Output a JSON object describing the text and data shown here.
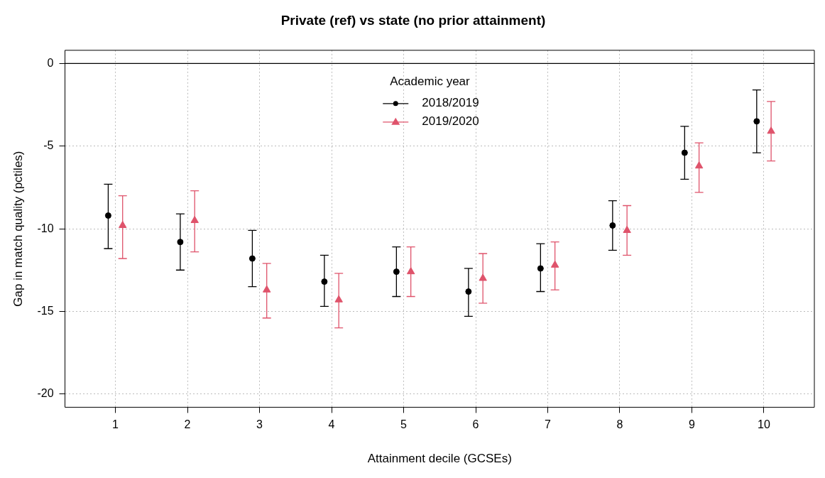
{
  "chart_data": {
    "type": "scatter",
    "title": "Private (ref) vs state (no prior attainment)",
    "xlabel": "Attainment decile (GCSEs)",
    "ylabel": "Gap in match quality (pctiles)",
    "legend_title": "Academic year",
    "legend": "top",
    "grid": true,
    "xlim": [
      0.3,
      10.7
    ],
    "xticks": [
      1,
      2,
      3,
      4,
      5,
      6,
      7,
      8,
      9,
      10
    ],
    "ylim": [
      -20.8,
      0.8
    ],
    "yticks": [
      -20,
      -15,
      -10,
      -5,
      0
    ],
    "ref_lines": [
      {
        "axis": "y",
        "value": 0,
        "color": "#000000",
        "line_style": "solid"
      }
    ],
    "series": [
      {
        "name": "2018/2019",
        "color": "#000000",
        "marker": "circle",
        "x": [
          0.9,
          1.9,
          2.9,
          3.9,
          4.9,
          5.9,
          6.9,
          7.9,
          8.9,
          9.9
        ],
        "values": [
          -9.2,
          -10.8,
          -11.8,
          -13.2,
          -12.6,
          -13.8,
          -12.4,
          -9.8,
          -5.4,
          -3.5
        ],
        "errors": [
          [
            -11.2,
            -7.3
          ],
          [
            -12.5,
            -9.1
          ],
          [
            -13.5,
            -10.1
          ],
          [
            -14.7,
            -11.6
          ],
          [
            -14.1,
            -11.1
          ],
          [
            -15.3,
            -12.4
          ],
          [
            -13.8,
            -10.9
          ],
          [
            -11.3,
            -8.3
          ],
          [
            -7.0,
            -3.8
          ],
          [
            -5.4,
            -1.6
          ]
        ]
      },
      {
        "name": "2019/2020",
        "color": "#df536b",
        "marker": "triangle",
        "x": [
          1.1,
          2.1,
          3.1,
          4.1,
          5.1,
          6.1,
          7.1,
          8.1,
          9.1,
          10.1
        ],
        "values": [
          -9.8,
          -9.5,
          -13.7,
          -14.3,
          -12.6,
          -13.0,
          -12.2,
          -10.1,
          -6.2,
          -4.1
        ],
        "errors": [
          [
            -11.8,
            -8.0
          ],
          [
            -11.4,
            -7.7
          ],
          [
            -15.4,
            -12.1
          ],
          [
            -16.0,
            -12.7
          ],
          [
            -14.1,
            -11.1
          ],
          [
            -14.5,
            -11.5
          ],
          [
            -13.7,
            -10.8
          ],
          [
            -11.6,
            -8.6
          ],
          [
            -7.8,
            -4.8
          ],
          [
            -5.9,
            -2.3
          ]
        ]
      }
    ]
  }
}
